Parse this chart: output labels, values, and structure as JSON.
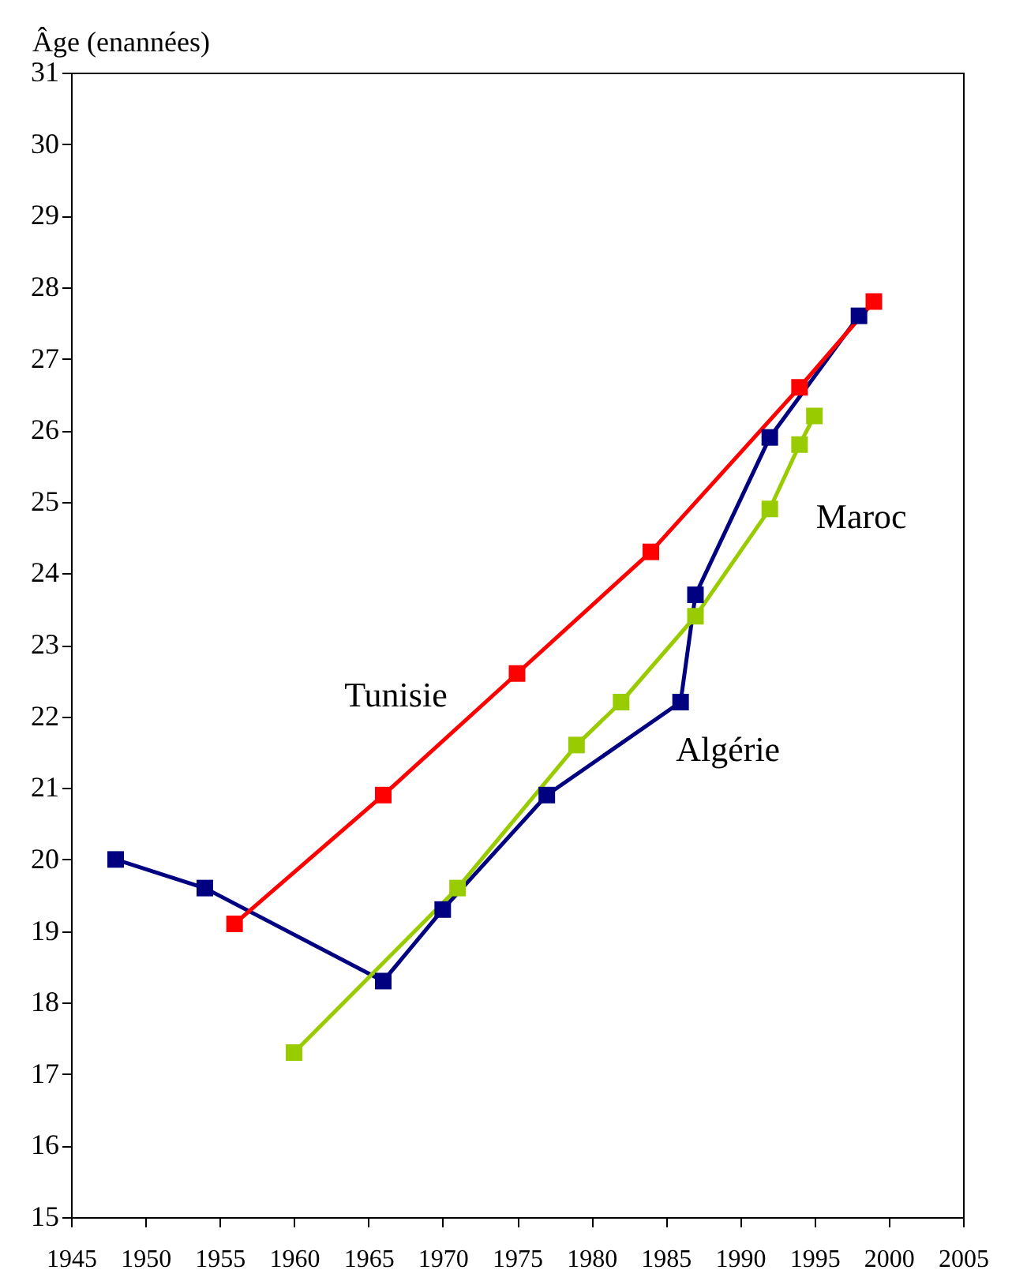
{
  "chart_data": {
    "type": "line",
    "ylabel": "Âge (enannées)",
    "marker": "square",
    "line_style": "solid",
    "xlim": [
      1945,
      2005
    ],
    "xticks": [
      1945,
      1950,
      1955,
      1960,
      1965,
      1970,
      1975,
      1980,
      1985,
      1990,
      1995,
      2000,
      2005
    ],
    "ylim": [
      15,
      31
    ],
    "yticks": [
      15,
      16,
      17,
      18,
      19,
      20,
      21,
      22,
      23,
      24,
      25,
      26,
      27,
      28,
      29,
      30,
      31
    ],
    "series": [
      {
        "name": "Algérie",
        "color": "#000080",
        "x": [
          1948,
          1954,
          1966,
          1970,
          1977,
          1986,
          1987,
          1992,
          1998
        ],
        "values": [
          20.0,
          19.6,
          18.3,
          19.3,
          20.9,
          22.2,
          23.7,
          25.9,
          27.6
        ]
      },
      {
        "name": "Tunisie",
        "color": "#ff0000",
        "x": [
          1956,
          1966,
          1975,
          1984,
          1994,
          1999
        ],
        "values": [
          19.1,
          20.9,
          22.6,
          24.3,
          26.6,
          27.8
        ]
      },
      {
        "name": "Maroc",
        "color": "#99cc00",
        "x": [
          1960,
          1971,
          1979,
          1982,
          1987,
          1992,
          1994,
          1995
        ],
        "values": [
          17.3,
          19.6,
          21.6,
          22.2,
          23.4,
          24.9,
          25.8,
          26.2
        ]
      }
    ]
  }
}
